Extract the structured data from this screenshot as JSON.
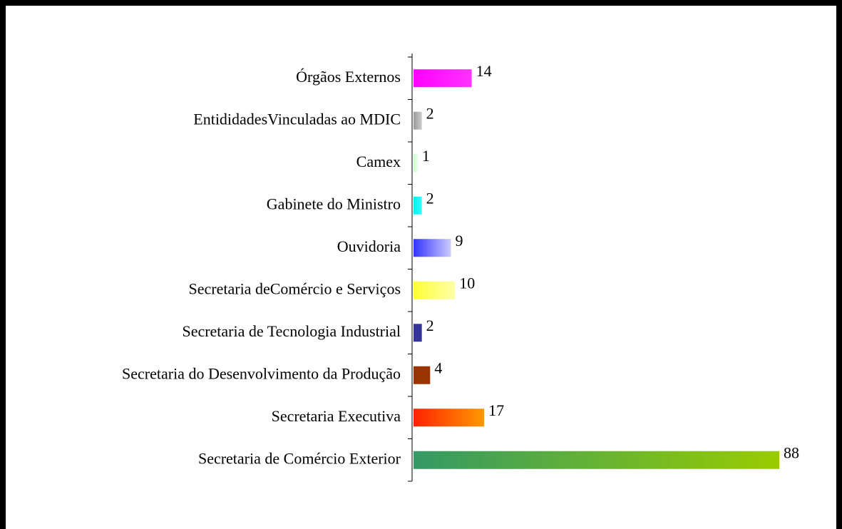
{
  "chart_data": {
    "type": "hbar",
    "categories": [
      "Órgãos Externos",
      "EntididadesVinculadas ao MDIC",
      "Camex",
      "Gabinete do Ministro",
      "Ouvidoria",
      "Secretaria deComércio e Serviços",
      "Secretaria de Tecnologia Industrial",
      "Secretaria do Desenvolvimento da Produção",
      "Secretaria Executiva",
      "Secretaria de Comércio Exterior"
    ],
    "values": [
      14,
      2,
      1,
      2,
      9,
      10,
      2,
      4,
      17,
      88
    ],
    "colors": [
      [
        "#ff00ff",
        "#ff33ff"
      ],
      [
        "#999999",
        "#cccccc"
      ],
      [
        "#ccffcc",
        "#e6ffe6"
      ],
      [
        "#00eeee",
        "#33ffff"
      ],
      [
        "#3333ff",
        "#ccccff"
      ],
      [
        "#ffff33",
        "#ffffaa"
      ],
      [
        "#333399",
        "#333399"
      ],
      [
        "#993300",
        "#993300"
      ],
      [
        "#ff2200",
        "#ff9900"
      ],
      [
        "#339966",
        "#99cc00"
      ]
    ]
  }
}
